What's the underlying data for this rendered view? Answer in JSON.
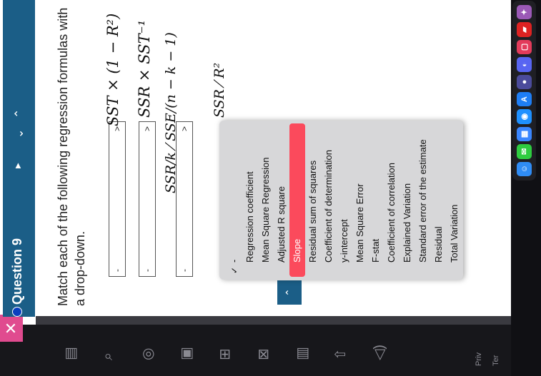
{
  "question": {
    "title": "Question 9",
    "prompt": "Match each of the following regression formulas with a drop-down."
  },
  "rows": [
    {
      "selected": "-",
      "formula": "SST × (1 − R²)"
    },
    {
      "selected": "-",
      "formula": "SSR × SST⁻¹"
    },
    {
      "selected": "-",
      "formula": "SSR/k ⁄ SSE/(n − k − 1)"
    },
    {
      "selected": "",
      "formula": "SSR ⁄ R²"
    }
  ],
  "dropdown": {
    "checked": "-",
    "options": [
      "Regression coefficient",
      "Mean Square Regression",
      "Adjusted R square",
      "Slope",
      "Residual sum of squares",
      "Coefficient of determination",
      "y-intercept",
      "Mean Square Error",
      "F-stat",
      "Coefficient of correlation",
      "Explained Variation",
      "Standard error of the estimate",
      "Residual",
      "Total Variation"
    ],
    "highlighted": "Slope"
  },
  "footer": {
    "t1": "Priv",
    "t2": "Ter"
  },
  "colors": {
    "header": "#1b5e87",
    "highlight": "#fb4a5c",
    "close": "#e04b8f"
  },
  "icons": [
    "close-icon",
    "play-icon",
    "chevron-up-icon",
    "chevron-down-icon",
    "check-icon"
  ]
}
